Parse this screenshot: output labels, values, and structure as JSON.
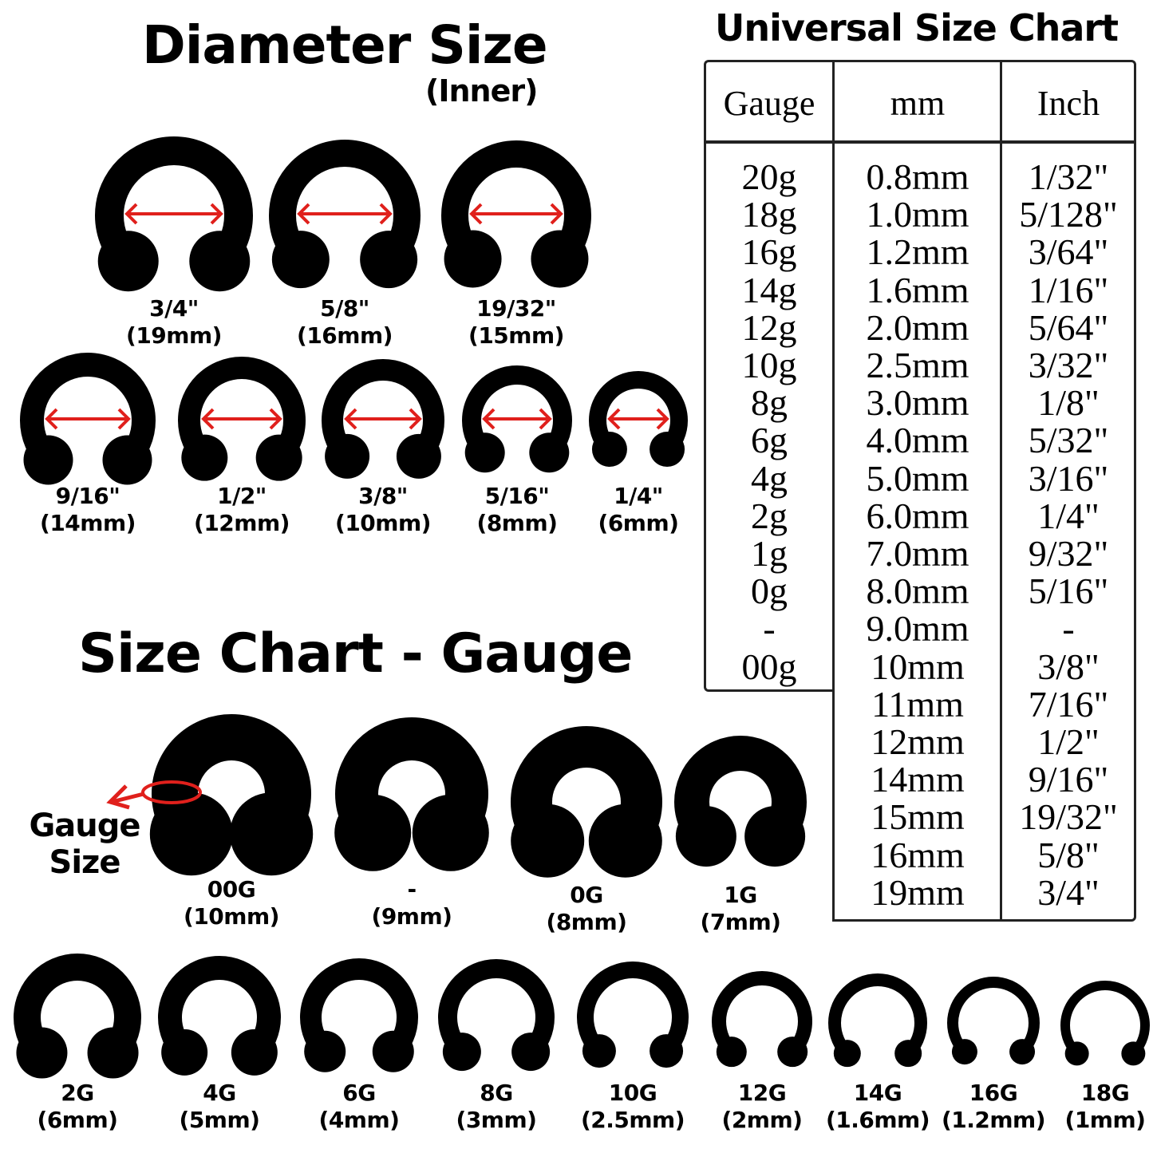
{
  "diameter": {
    "title": "Diameter Size",
    "subtitle": "(Inner)",
    "rings": [
      {
        "inch": "3/4\"",
        "mm": "(19mm)"
      },
      {
        "inch": "5/8\"",
        "mm": "(16mm)"
      },
      {
        "inch": "19/32\"",
        "mm": "(15mm)"
      },
      {
        "inch": "9/16\"",
        "mm": "(14mm)"
      },
      {
        "inch": "1/2\"",
        "mm": "(12mm)"
      },
      {
        "inch": "3/8\"",
        "mm": "(10mm)"
      },
      {
        "inch": "5/16\"",
        "mm": "(8mm)"
      },
      {
        "inch": "1/4\"",
        "mm": "(6mm)"
      }
    ]
  },
  "gauge": {
    "title": "Size Chart - Gauge",
    "callout": [
      "Gauge",
      "Size"
    ],
    "rings": [
      {
        "gauge": "00G",
        "mm": "(10mm)"
      },
      {
        "gauge": "-",
        "mm": "(9mm)"
      },
      {
        "gauge": "0G",
        "mm": "(8mm)"
      },
      {
        "gauge": "1G",
        "mm": "(7mm)"
      },
      {
        "gauge": "2G",
        "mm": "(6mm)"
      },
      {
        "gauge": "4G",
        "mm": "(5mm)"
      },
      {
        "gauge": "6G",
        "mm": "(4mm)"
      },
      {
        "gauge": "8G",
        "mm": "(3mm)"
      },
      {
        "gauge": "10G",
        "mm": "(2.5mm)"
      },
      {
        "gauge": "12G",
        "mm": "(2mm)"
      },
      {
        "gauge": "14G",
        "mm": "(1.6mm)"
      },
      {
        "gauge": "16G",
        "mm": "(1.2mm)"
      },
      {
        "gauge": "18G",
        "mm": "(1mm)"
      }
    ]
  },
  "table": {
    "title": "Universal Size Chart",
    "headers": [
      "Gauge",
      "mm",
      "Inch"
    ],
    "gauge": [
      "20g",
      "18g",
      "16g",
      "14g",
      "12g",
      "10g",
      "8g",
      "6g",
      "4g",
      "2g",
      "1g",
      "0g",
      "-",
      "00g"
    ],
    "mm": [
      "0.8mm",
      "1.0mm",
      "1.2mm",
      "1.6mm",
      "2.0mm",
      "2.5mm",
      "3.0mm",
      "4.0mm",
      "5.0mm",
      "6.0mm",
      "7.0mm",
      "8.0mm",
      "9.0mm",
      "10mm",
      "11mm",
      "12mm",
      "14mm",
      "15mm",
      "16mm",
      "19mm"
    ],
    "inch": [
      "1/32\"",
      "5/128\"",
      "3/64\"",
      "1/16\"",
      "5/64\"",
      "3/32\"",
      "1/8\"",
      "5/32\"",
      "3/16\"",
      "1/4\"",
      "9/32\"",
      "5/16\"",
      "-",
      "3/8\"",
      "7/16\"",
      "1/2\"",
      "9/16\"",
      "19/32\"",
      "5/8\"",
      "3/4\""
    ]
  },
  "colors": {
    "ring": "#000000",
    "arrow": "#e0201c",
    "border": "#222222"
  }
}
